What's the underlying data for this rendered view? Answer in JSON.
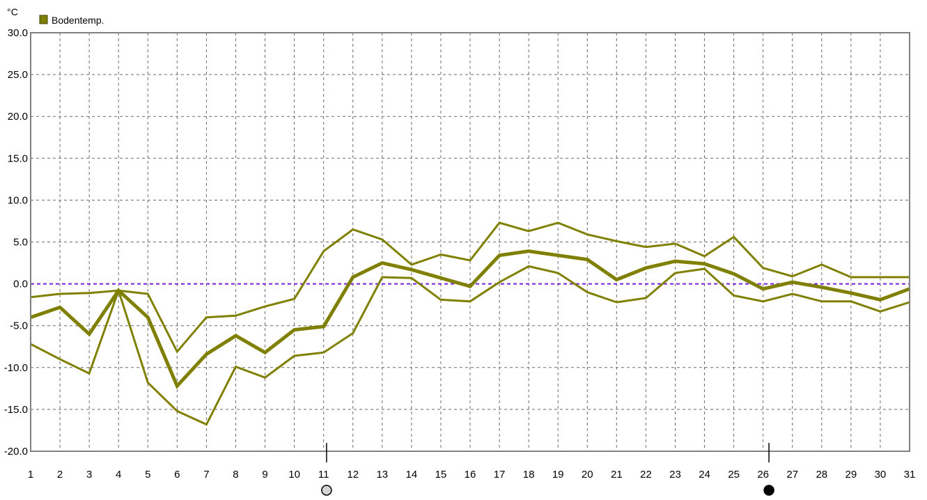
{
  "chart_data": {
    "type": "line",
    "title": "",
    "xlabel": "",
    "ylabel": "°C",
    "xlim": [
      1,
      31
    ],
    "ylim": [
      -20,
      30
    ],
    "y_ticks": [
      30,
      25,
      20,
      15,
      10,
      5,
      0,
      -5,
      -10,
      -15,
      -20
    ],
    "y_tick_labels": [
      "30.0",
      "25.0",
      "20.0",
      "15.0",
      "10.0",
      "5.0",
      "0.0",
      "-5.0",
      "-10.0",
      "-15.0",
      "-20.0"
    ],
    "x": [
      1,
      2,
      3,
      4,
      5,
      6,
      7,
      8,
      9,
      10,
      11,
      12,
      13,
      14,
      15,
      16,
      17,
      18,
      19,
      20,
      21,
      22,
      23,
      24,
      25,
      26,
      27,
      28,
      29,
      30,
      31
    ],
    "x_tick_labels": [
      "1",
      "2",
      "3",
      "4",
      "5",
      "6",
      "7",
      "8",
      "9",
      "10",
      "11",
      "12",
      "13",
      "14",
      "15",
      "16",
      "17",
      "18",
      "19",
      "20",
      "21",
      "22",
      "23",
      "24",
      "25",
      "26",
      "27",
      "28",
      "29",
      "30",
      "31"
    ],
    "grid": true,
    "legend": {
      "position": "top-left",
      "entries": [
        {
          "label": "Bodentemp.",
          "color": "#808000"
        }
      ]
    },
    "reference_line": {
      "y": 0,
      "color": "#7a1fd6",
      "style": "dashed"
    },
    "moon_markers": [
      {
        "x": 11.1,
        "phase": "full-moon-icon"
      },
      {
        "x": 26.2,
        "phase": "new-moon-icon"
      }
    ],
    "series_color": "#808000",
    "series": [
      {
        "role": "max",
        "stroke": 3,
        "values": [
          -1.6,
          -1.2,
          -1.1,
          -0.8,
          -1.2,
          -8.1,
          -4.0,
          -3.8,
          -2.7,
          -1.8,
          3.9,
          6.5,
          5.3,
          2.3,
          3.5,
          2.8,
          7.3,
          6.3,
          7.3,
          5.9,
          5.1,
          4.4,
          4.8,
          3.3,
          5.6,
          1.9,
          0.9,
          2.3,
          0.8,
          0.8,
          0.8
        ]
      },
      {
        "role": "mean",
        "stroke": 5,
        "values": [
          -4.0,
          -2.8,
          -6.0,
          -0.8,
          -4.0,
          -12.2,
          -8.4,
          -6.2,
          -8.2,
          -5.5,
          -5.1,
          0.8,
          2.5,
          1.7,
          0.7,
          -0.3,
          3.4,
          3.9,
          3.4,
          2.9,
          0.5,
          1.9,
          2.7,
          2.4,
          1.2,
          -0.6,
          0.2,
          -0.4,
          -1.1,
          -1.9,
          -0.6
        ]
      },
      {
        "role": "min",
        "stroke": 3,
        "values": [
          -7.2,
          -9.0,
          -10.7,
          -0.8,
          -11.8,
          -15.2,
          -16.8,
          -9.9,
          -11.2,
          -8.6,
          -8.2,
          -5.9,
          0.8,
          0.7,
          -1.9,
          -2.1,
          0.2,
          2.1,
          1.3,
          -1.0,
          -2.2,
          -1.7,
          1.3,
          1.8,
          -1.4,
          -2.1,
          -1.2,
          -2.1,
          -2.1,
          -3.3,
          -2.2
        ]
      }
    ]
  }
}
